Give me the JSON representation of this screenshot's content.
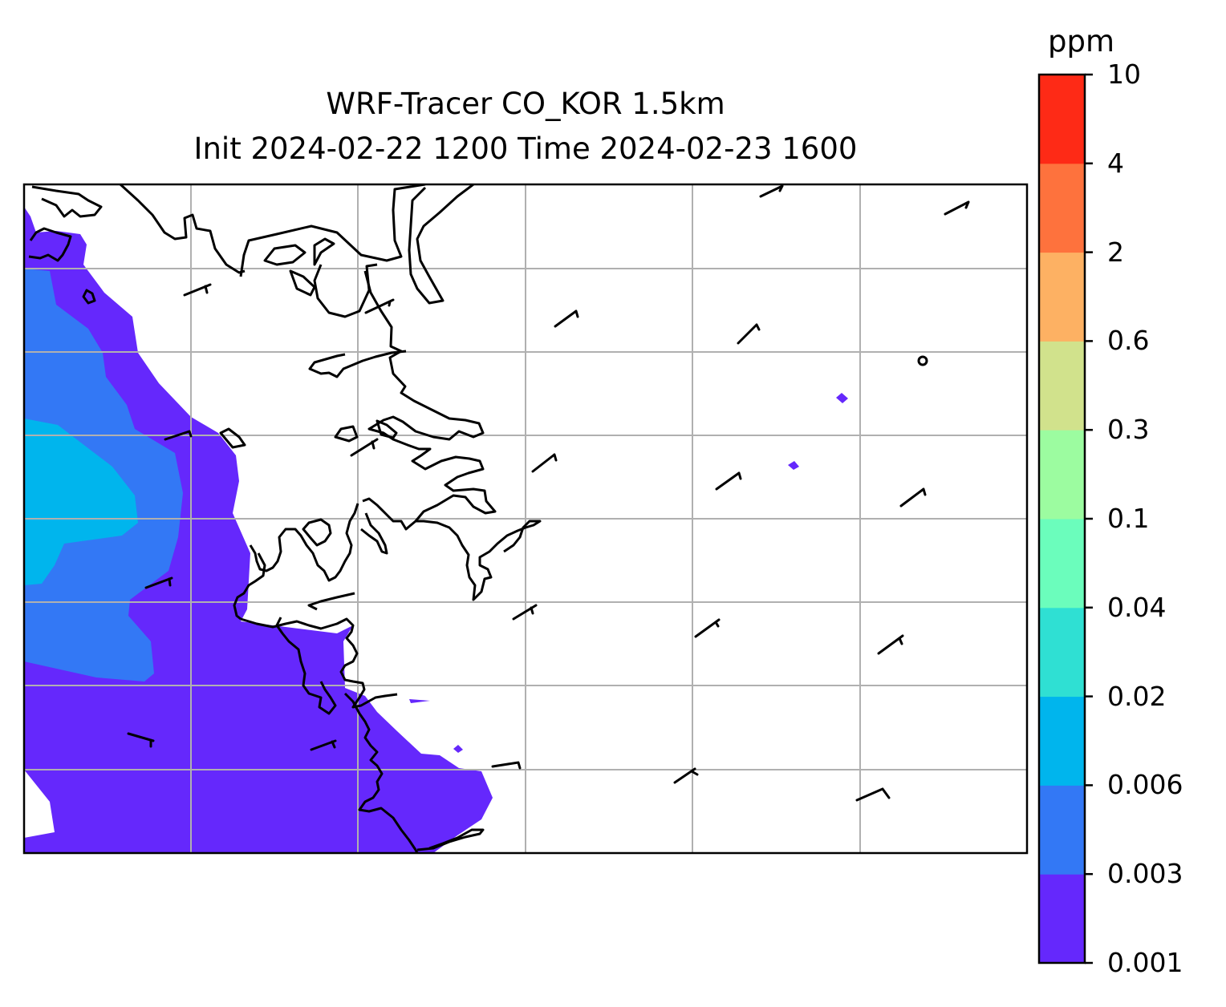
{
  "title": {
    "line1": "WRF-Tracer CO_KOR 1.5km",
    "line2": "Init 2024-02-22 1200 Time 2024-02-23 1600"
  },
  "colorbar": {
    "unit": "ppm",
    "ticks": [
      "0.001",
      "0.003",
      "0.006",
      "0.02",
      "0.04",
      "0.1",
      "0.3",
      "0.6",
      "2",
      "4",
      "10"
    ],
    "colors": [
      "#6528fc",
      "#3378f5",
      "#00b5ed",
      "#2fe0d3",
      "#6bfdbc",
      "#9cfca0",
      "#d1e28c",
      "#fdb163",
      "#fe723d",
      "#fe2a16"
    ]
  },
  "map": {
    "shading_colors": {
      "level1": "#6528fc",
      "level2": "#3378f5",
      "level3": "#00b5ed"
    },
    "gridline_color": "#b0b0b0",
    "coastline_color": "#000000"
  }
}
